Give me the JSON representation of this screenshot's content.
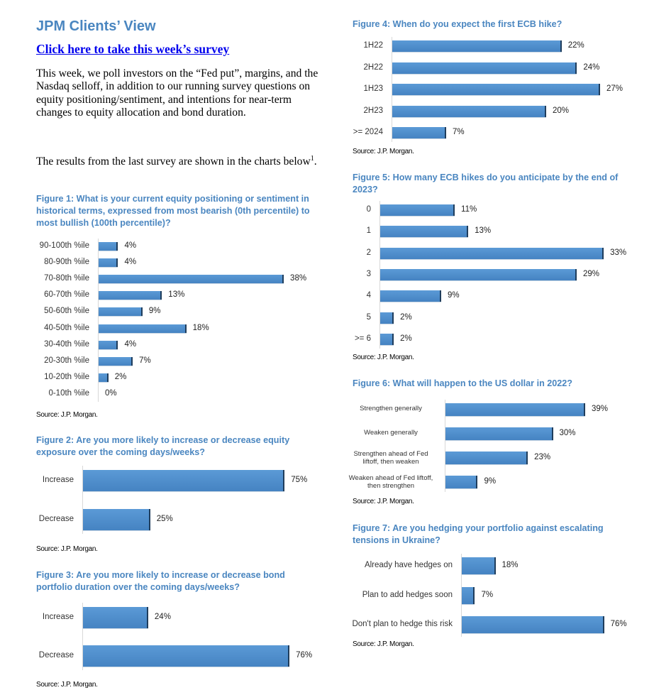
{
  "header": {
    "title": "JPM Clients’ View",
    "survey_link": "Click here to take this week’s survey"
  },
  "intro": {
    "paragraph1": "This week, we poll investors on the “Fed put”, margins, and the Nasdaq selloff, in addition to our running survey questions on equity positioning/sentiment, and intentions for near-term changes to equity allocation and bond duration.",
    "paragraph2": "The results from the last survey are shown in the charts below",
    "footnote": "1"
  },
  "colors": {
    "bar": "#4a8bc9",
    "title": "#4a86c0"
  },
  "chart_data": [
    {
      "type": "bar",
      "orientation": "horizontal",
      "title": "Figure 1: What is your current equity positioning or sentiment in historical terms, expressed from most bearish (0th percentile) to most bullish (100th percentile)?",
      "categories": [
        "90-100th %ile",
        "80-90th %ile",
        "70-80th %ile",
        "60-70th %ile",
        "50-60th %ile",
        "40-50th %ile",
        "30-40th %ile",
        "20-30th %ile",
        "10-20th %ile",
        "0-10th %ile"
      ],
      "values": [
        4,
        4,
        38,
        13,
        9,
        18,
        4,
        7,
        2,
        0
      ],
      "labels": [
        "4%",
        "4%",
        "38%",
        "13%",
        "9%",
        "18%",
        "4%",
        "7%",
        "2%",
        "0%"
      ],
      "source": "Source: J.P. Morgan."
    },
    {
      "type": "bar",
      "orientation": "horizontal",
      "title": "Figure 2: Are you more likely to increase or decrease equity exposure over the coming days/weeks?",
      "categories": [
        "Increase",
        "Decrease"
      ],
      "values": [
        75,
        25
      ],
      "labels": [
        "75%",
        "25%"
      ],
      "source": "Source: J.P. Morgan."
    },
    {
      "type": "bar",
      "orientation": "horizontal",
      "title": "Figure 3: Are you more likely to increase or decrease bond portfolio duration over the coming days/weeks?",
      "categories": [
        "Increase",
        "Decrease"
      ],
      "values": [
        24,
        76
      ],
      "labels": [
        "24%",
        "76%"
      ],
      "source": "Source: J.P. Morgan."
    },
    {
      "type": "bar",
      "orientation": "horizontal",
      "title": "Figure 4: When do you expect the first ECB hike?",
      "categories": [
        "1H22",
        "2H22",
        "1H23",
        "2H23",
        ">= 2024"
      ],
      "values": [
        22,
        24,
        27,
        20,
        7
      ],
      "labels": [
        "22%",
        "24%",
        "27%",
        "20%",
        "7%"
      ],
      "source": "Source: J.P. Morgan."
    },
    {
      "type": "bar",
      "orientation": "horizontal",
      "title": "Figure 5: How many ECB hikes do you anticipate by the end of 2023?",
      "categories": [
        "0",
        "1",
        "2",
        "3",
        "4",
        "5",
        ">= 6"
      ],
      "values": [
        11,
        13,
        33,
        29,
        9,
        2,
        2
      ],
      "labels": [
        "11%",
        "13%",
        "33%",
        "29%",
        "9%",
        "2%",
        "2%"
      ],
      "source": "Source: J.P. Morgan."
    },
    {
      "type": "bar",
      "orientation": "horizontal",
      "title": "Figure 6: What will happen to the US dollar in 2022?",
      "categories": [
        "Strengthen generally",
        "Weaken generally",
        "Strengthen ahead of Fed liftoff, then weaken",
        "Weaken ahead of Fed liftoff, then strengthen"
      ],
      "values": [
        39,
        30,
        23,
        9
      ],
      "labels": [
        "39%",
        "30%",
        "23%",
        "9%"
      ],
      "source": "Source: J.P. Morgan."
    },
    {
      "type": "bar",
      "orientation": "horizontal",
      "title": "Figure 7: Are you hedging your portfolio against escalating tensions in Ukraine?",
      "categories": [
        "Already have hedges on",
        "Plan to add hedges soon",
        "Don't plan to hedge this risk"
      ],
      "values": [
        18,
        7,
        76
      ],
      "labels": [
        "18%",
        "7%",
        "76%"
      ],
      "source": "Source: J.P. Morgan."
    }
  ]
}
